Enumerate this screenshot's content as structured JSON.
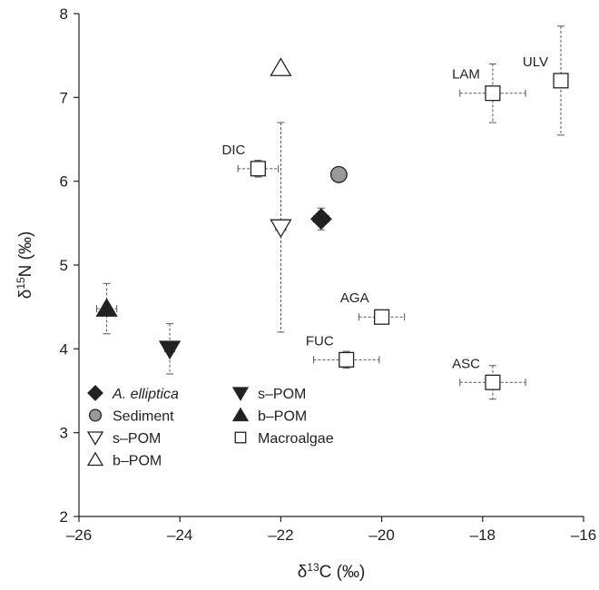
{
  "chart_data": {
    "type": "scatter",
    "xlabel": {
      "prefix": "δ",
      "sup": "13",
      "main": "C (‰)"
    },
    "ylabel": {
      "prefix": "δ",
      "sup": "15",
      "main": "N (‰)"
    },
    "xlim": [
      -26,
      -16
    ],
    "ylim": [
      2,
      8
    ],
    "xticks": [
      -26,
      -24,
      -22,
      -20,
      -18,
      -16
    ],
    "yticks": [
      2,
      3,
      4,
      5,
      6,
      7,
      8
    ],
    "xtick_labels": [
      "–26",
      "–24",
      "–22",
      "–20",
      "–18",
      "–16"
    ],
    "ytick_labels": [
      "2",
      "3",
      "4",
      "5",
      "6",
      "7",
      "8"
    ],
    "grid": false,
    "legend_position": "bottom-left",
    "points": [
      {
        "marker": "diamond",
        "fill": "#222222",
        "x": -21.2,
        "y": 5.55,
        "xerr": 0.15,
        "yerr": 0.13,
        "label": ""
      },
      {
        "marker": "circle",
        "fill": "#9a9a9a",
        "x": -20.85,
        "y": 6.08,
        "xerr": 0.1,
        "yerr": 0.05,
        "label": ""
      },
      {
        "marker": "triangle-down",
        "fill": "#ffffff",
        "x": -22.0,
        "y": 5.45,
        "xerr": 0.1,
        "yerr": 1.25,
        "label": ""
      },
      {
        "marker": "triangle-up",
        "fill": "#ffffff",
        "x": -22.0,
        "y": 7.35,
        "xerr": 0.05,
        "yerr": 0.05,
        "label": ""
      },
      {
        "marker": "triangle-down",
        "fill": "#222222",
        "x": -24.2,
        "y": 4.0,
        "xerr": 0.1,
        "yerr": 0.3,
        "label": ""
      },
      {
        "marker": "triangle-up",
        "fill": "#222222",
        "x": -25.45,
        "y": 4.48,
        "xerr": 0.2,
        "yerr": 0.3,
        "label": ""
      },
      {
        "marker": "square",
        "fill": "#ffffff",
        "x": -22.45,
        "y": 6.15,
        "xerr": 0.4,
        "yerr": 0.1,
        "label": "DIC"
      },
      {
        "marker": "square",
        "fill": "#ffffff",
        "x": -17.8,
        "y": 7.05,
        "xerr": 0.65,
        "yerr": 0.35,
        "label": "LAM"
      },
      {
        "marker": "square",
        "fill": "#ffffff",
        "x": -16.45,
        "y": 7.2,
        "xerr": 0.05,
        "yerr": 0.65,
        "label": "ULV"
      },
      {
        "marker": "square",
        "fill": "#ffffff",
        "x": -20.0,
        "y": 4.38,
        "xerr": 0.45,
        "yerr": 0.05,
        "label": "AGA"
      },
      {
        "marker": "square",
        "fill": "#ffffff",
        "x": -20.7,
        "y": 3.87,
        "xerr": 0.65,
        "yerr": 0.1,
        "label": "FUC"
      },
      {
        "marker": "square",
        "fill": "#ffffff",
        "x": -17.8,
        "y": 3.6,
        "xerr": 0.65,
        "yerr": 0.2,
        "label": "ASC"
      }
    ],
    "legend": {
      "col1": [
        {
          "marker": "diamond",
          "fill": "#222222",
          "text": "A. elliptica",
          "italic": true
        },
        {
          "marker": "circle",
          "fill": "#9a9a9a",
          "text": "Sediment",
          "italic": false
        },
        {
          "marker": "triangle-down",
          "fill": "#ffffff",
          "text": "s–POM",
          "italic": false
        },
        {
          "marker": "triangle-up",
          "fill": "#ffffff",
          "text": "b–POM",
          "italic": false
        }
      ],
      "col2": [
        {
          "marker": "triangle-down",
          "fill": "#222222",
          "text": "s–POM",
          "italic": false
        },
        {
          "marker": "triangle-up",
          "fill": "#222222",
          "text": "b–POM",
          "italic": false
        },
        {
          "marker": "square",
          "fill": "#ffffff",
          "text": "Macroalgae",
          "italic": false
        }
      ]
    }
  }
}
